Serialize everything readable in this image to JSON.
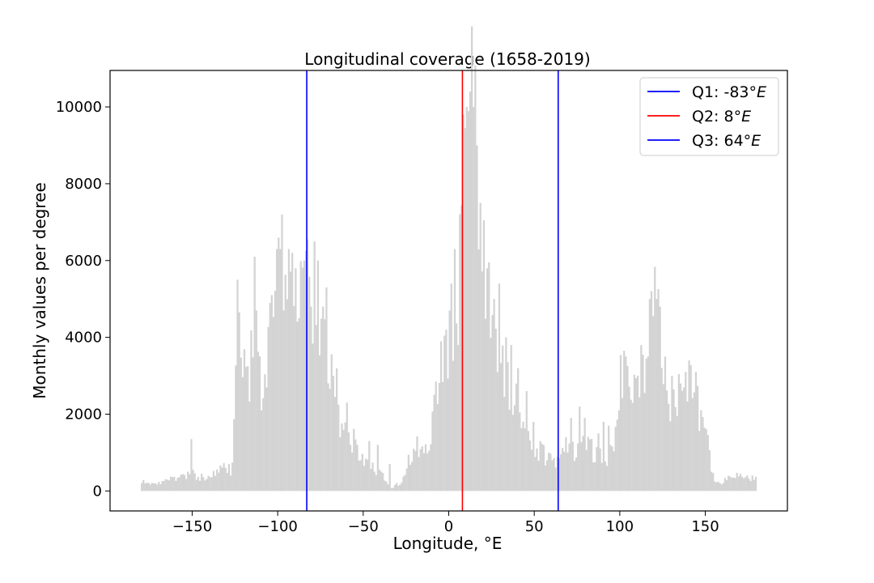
{
  "chart_data": {
    "type": "bar",
    "title": "Longitudinal coverage (1658-2019)",
    "xlabel": "Longitude, °E",
    "ylabel": "Monthly values per degree",
    "xlim": [
      -198,
      198
    ],
    "ylim": [
      -520,
      10950
    ],
    "x_ticks": [
      -150,
      -100,
      -50,
      0,
      50,
      100,
      150
    ],
    "x_tick_labels": [
      "−150",
      "−100",
      "−50",
      "0",
      "50",
      "100",
      "150"
    ],
    "y_ticks": [
      0,
      2000,
      4000,
      6000,
      8000,
      10000
    ],
    "y_tick_labels": [
      "0",
      "2000",
      "4000",
      "6000",
      "8000",
      "10000"
    ],
    "grid": false,
    "legend_position": "top-right",
    "bar_color": "#d3d3d3",
    "histogram_anchors": [
      [
        -180,
        250
      ],
      [
        -175,
        200
      ],
      [
        -170,
        180
      ],
      [
        -165,
        350
      ],
      [
        -160,
        300
      ],
      [
        -155,
        350
      ],
      [
        -152,
        500
      ],
      [
        -150,
        450
      ],
      [
        -145,
        350
      ],
      [
        -140,
        400
      ],
      [
        -135,
        500
      ],
      [
        -130,
        600
      ],
      [
        -126,
        700
      ],
      [
        -125,
        2800
      ],
      [
        -123,
        3900
      ],
      [
        -120,
        3500
      ],
      [
        -118,
        2600
      ],
      [
        -115,
        3400
      ],
      [
        -112,
        4000
      ],
      [
        -110,
        3000
      ],
      [
        -107,
        3600
      ],
      [
        -105,
        3800
      ],
      [
        -102,
        4300
      ],
      [
        -100,
        5200
      ],
      [
        -98,
        5800
      ],
      [
        -96,
        5600
      ],
      [
        -94,
        4600
      ],
      [
        -92,
        5700
      ],
      [
        -90,
        5200
      ],
      [
        -88,
        5000
      ],
      [
        -86,
        5200
      ],
      [
        -84,
        5000
      ],
      [
        -82,
        5200
      ],
      [
        -80,
        5000
      ],
      [
        -78,
        4600
      ],
      [
        -76,
        4200
      ],
      [
        -74,
        3800
      ],
      [
        -72,
        3400
      ],
      [
        -70,
        3100
      ],
      [
        -68,
        2800
      ],
      [
        -66,
        2600
      ],
      [
        -64,
        2200
      ],
      [
        -62,
        2000
      ],
      [
        -60,
        1700
      ],
      [
        -58,
        1400
      ],
      [
        -56,
        1300
      ],
      [
        -54,
        1200
      ],
      [
        -52,
        1000
      ],
      [
        -50,
        900
      ],
      [
        -48,
        800
      ],
      [
        -46,
        700
      ],
      [
        -44,
        600
      ],
      [
        -42,
        500
      ],
      [
        -40,
        450
      ],
      [
        -38,
        350
      ],
      [
        -36,
        250
      ],
      [
        -34,
        100
      ],
      [
        -32,
        100
      ],
      [
        -30,
        200
      ],
      [
        -28,
        150
      ],
      [
        -26,
        400
      ],
      [
        -24,
        700
      ],
      [
        -22,
        900
      ],
      [
        -20,
        1100
      ],
      [
        -18,
        1200
      ],
      [
        -16,
        1000
      ],
      [
        -14,
        1100
      ],
      [
        -12,
        1300
      ],
      [
        -10,
        1800
      ],
      [
        -8,
        2300
      ],
      [
        -6,
        2800
      ],
      [
        -4,
        3100
      ],
      [
        -2,
        3400
      ],
      [
        0,
        3300
      ],
      [
        2,
        2800
      ],
      [
        4,
        3200
      ],
      [
        6,
        5500
      ],
      [
        8,
        6200
      ],
      [
        10,
        8000
      ],
      [
        12,
        9500
      ],
      [
        14,
        9800
      ],
      [
        16,
        9200
      ],
      [
        18,
        8000
      ],
      [
        20,
        6500
      ],
      [
        22,
        5500
      ],
      [
        24,
        4800
      ],
      [
        26,
        4400
      ],
      [
        28,
        4200
      ],
      [
        30,
        3900
      ],
      [
        32,
        3400
      ],
      [
        34,
        3000
      ],
      [
        36,
        2800
      ],
      [
        38,
        2600
      ],
      [
        40,
        2200
      ],
      [
        42,
        1900
      ],
      [
        44,
        1700
      ],
      [
        46,
        1500
      ],
      [
        48,
        1300
      ],
      [
        50,
        1200
      ],
      [
        52,
        1100
      ],
      [
        54,
        1000
      ],
      [
        56,
        900
      ],
      [
        58,
        800
      ],
      [
        60,
        800
      ],
      [
        62,
        750
      ],
      [
        64,
        750
      ],
      [
        66,
        900
      ],
      [
        70,
        1000
      ],
      [
        75,
        1100
      ],
      [
        80,
        1200
      ],
      [
        85,
        1000
      ],
      [
        90,
        1000
      ],
      [
        92,
        700
      ],
      [
        95,
        1000
      ],
      [
        98,
        1500
      ],
      [
        100,
        2800
      ],
      [
        103,
        3300
      ],
      [
        105,
        3000
      ],
      [
        107,
        2500
      ],
      [
        109,
        2700
      ],
      [
        111,
        3300
      ],
      [
        113,
        2800
      ],
      [
        115,
        3300
      ],
      [
        117,
        3600
      ],
      [
        119,
        4800
      ],
      [
        121,
        5100
      ],
      [
        123,
        4200
      ],
      [
        125,
        3200
      ],
      [
        127,
        2300
      ],
      [
        129,
        1800
      ],
      [
        131,
        2000
      ],
      [
        133,
        2300
      ],
      [
        135,
        2700
      ],
      [
        137,
        3000
      ],
      [
        139,
        3300
      ],
      [
        141,
        2900
      ],
      [
        143,
        2600
      ],
      [
        145,
        2300
      ],
      [
        147,
        2100
      ],
      [
        149,
        1900
      ],
      [
        151,
        1700
      ],
      [
        152,
        1500
      ],
      [
        153,
        800
      ],
      [
        155,
        300
      ],
      [
        158,
        200
      ],
      [
        160,
        250
      ],
      [
        163,
        350
      ],
      [
        166,
        450
      ],
      [
        170,
        400
      ],
      [
        175,
        350
      ],
      [
        180,
        300
      ]
    ],
    "spikes": [
      [
        -151,
        1350
      ],
      [
        -128,
        400
      ],
      [
        -124,
        5500
      ],
      [
        -114,
        6100
      ],
      [
        -113,
        4700
      ],
      [
        -110,
        2100
      ],
      [
        -104,
        5100
      ],
      [
        -101,
        6300
      ],
      [
        -99,
        6300
      ],
      [
        -97,
        4700
      ],
      [
        -94,
        6300
      ],
      [
        -92,
        6200
      ],
      [
        -90,
        5800
      ],
      [
        -88,
        4500
      ],
      [
        -85,
        6000
      ],
      [
        -83,
        6550
      ],
      [
        -81,
        4800
      ],
      [
        -79,
        6500
      ],
      [
        -77,
        6000
      ],
      [
        -74,
        4800
      ],
      [
        -72,
        5300
      ],
      [
        -68,
        3000
      ],
      [
        -64,
        1400
      ],
      [
        -60,
        2300
      ],
      [
        -57,
        1000
      ],
      [
        -47,
        1300
      ],
      [
        -42,
        1200
      ],
      [
        -35,
        700
      ],
      [
        -5,
        3900
      ],
      [
        -2,
        4200
      ],
      [
        0,
        4700
      ],
      [
        1,
        5400
      ],
      [
        3,
        6300
      ],
      [
        5,
        3800
      ],
      [
        8,
        9800
      ],
      [
        10,
        10000
      ],
      [
        12,
        10400
      ],
      [
        14,
        10000
      ],
      [
        16,
        9000
      ],
      [
        18,
        7500
      ],
      [
        22,
        5800
      ],
      [
        26,
        5000
      ],
      [
        29,
        5400
      ],
      [
        33,
        4000
      ],
      [
        36,
        3800
      ],
      [
        40,
        3200
      ],
      [
        45,
        2600
      ],
      [
        49,
        1800
      ],
      [
        53,
        1300
      ],
      [
        55,
        1200
      ],
      [
        58,
        1000
      ],
      [
        68,
        1400
      ],
      [
        71,
        1900
      ],
      [
        76,
        2200
      ],
      [
        79,
        1900
      ],
      [
        87,
        1500
      ],
      [
        90,
        1800
      ],
      [
        93,
        1700
      ],
      [
        103,
        3500
      ],
      [
        110,
        3000
      ],
      [
        112,
        3800
      ],
      [
        117,
        5000
      ],
      [
        118,
        5200
      ],
      [
        121,
        5000
      ],
      [
        123,
        4800
      ],
      [
        126,
        3500
      ],
      [
        130,
        3000
      ],
      [
        135,
        2800
      ],
      [
        138,
        3100
      ],
      [
        140,
        3400
      ],
      [
        144,
        3100
      ]
    ],
    "lines": [
      {
        "name": "Q1",
        "label_prefix": "Q1: ",
        "label_value": "-83°",
        "label_unit": "E",
        "x": -83,
        "color": "#0000ff"
      },
      {
        "name": "Q2",
        "label_prefix": "Q2: ",
        "label_value": "8°",
        "label_unit": "E",
        "x": 8,
        "color": "#ff0000"
      },
      {
        "name": "Q3",
        "label_prefix": "Q3: ",
        "label_value": "64°",
        "label_unit": "E",
        "x": 64,
        "color": "#0000ff"
      }
    ]
  }
}
